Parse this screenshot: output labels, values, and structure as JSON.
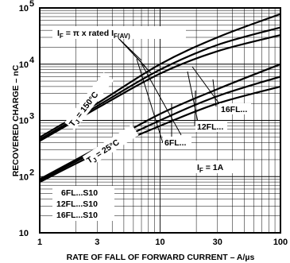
{
  "chart_data": {
    "type": "line",
    "title": "",
    "xlabel": "RATE OF FALL OF FORWARD CURRENT – A/µs",
    "ylabel": "RECOVERED CHARGE – nC",
    "xscale": "log",
    "yscale": "log",
    "xlim": [
      1,
      100
    ],
    "ylim": [
      10,
      100000
    ],
    "grid": true,
    "x_ticks": [
      {
        "value": 1,
        "label": "1"
      },
      {
        "value": 3,
        "label": "3"
      },
      {
        "value": 10,
        "label": "10"
      },
      {
        "value": 30,
        "label": "30"
      },
      {
        "value": 100,
        "label": "100"
      }
    ],
    "y_ticks": [
      {
        "value": 10,
        "base": "10",
        "exp": ""
      },
      {
        "value": 100,
        "base": "10",
        "exp": "2"
      },
      {
        "value": 1000,
        "base": "10",
        "exp": "3"
      },
      {
        "value": 10000,
        "base": "10",
        "exp": "4"
      },
      {
        "value": 100000,
        "base": "10",
        "exp": "5"
      }
    ],
    "series": [
      {
        "group": "TJ = 150°C",
        "device": "16FL...",
        "points": [
          [
            1,
            500
          ],
          [
            3,
            2000
          ],
          [
            10,
            10000
          ],
          [
            30,
            30000
          ],
          [
            100,
            78000
          ]
        ]
      },
      {
        "group": "TJ = 150°C",
        "device": "12FL...",
        "points": [
          [
            1,
            460
          ],
          [
            3,
            1800
          ],
          [
            10,
            8000
          ],
          [
            30,
            22000
          ],
          [
            100,
            45000
          ]
        ]
      },
      {
        "group": "TJ = 150°C",
        "device": "6FL...",
        "points": [
          [
            1,
            430
          ],
          [
            3,
            1650
          ],
          [
            10,
            6800
          ],
          [
            30,
            17000
          ],
          [
            100,
            33000
          ]
        ]
      },
      {
        "group": "TJ = 25°C",
        "device": "16FL...",
        "points": [
          [
            1,
            90
          ],
          [
            3,
            320
          ],
          [
            10,
            1300
          ],
          [
            30,
            3600
          ],
          [
            100,
            10000
          ]
        ]
      },
      {
        "group": "TJ = 25°C",
        "device": "12FL...",
        "points": [
          [
            1,
            85
          ],
          [
            3,
            290
          ],
          [
            10,
            1000
          ],
          [
            30,
            2700
          ],
          [
            100,
            6000
          ]
        ]
      },
      {
        "group": "TJ = 25°C",
        "device": "6FL...",
        "points": [
          [
            1,
            80
          ],
          [
            3,
            260
          ],
          [
            10,
            800
          ],
          [
            30,
            2000
          ],
          [
            100,
            4000
          ]
        ]
      }
    ],
    "annotations": {
      "if_rated": {
        "main": "I",
        "sub": "F",
        "mid": " = π x rated I",
        "sub2": "F(AV)"
      },
      "tj150": {
        "main": "T",
        "sub": "J",
        "rest": " = 150°C"
      },
      "tj25": {
        "main": "T",
        "sub": "J",
        "rest": " = 25°C"
      },
      "label_16fl": "16FL...",
      "label_12fl": "12FL...",
      "label_6fl": "6FL...",
      "if_1a": {
        "main": "I",
        "sub": "F",
        "rest": " = 1A"
      },
      "legend_lines": [
        "6FL...S10",
        "12FL...S10",
        "16FL...S10"
      ]
    }
  }
}
